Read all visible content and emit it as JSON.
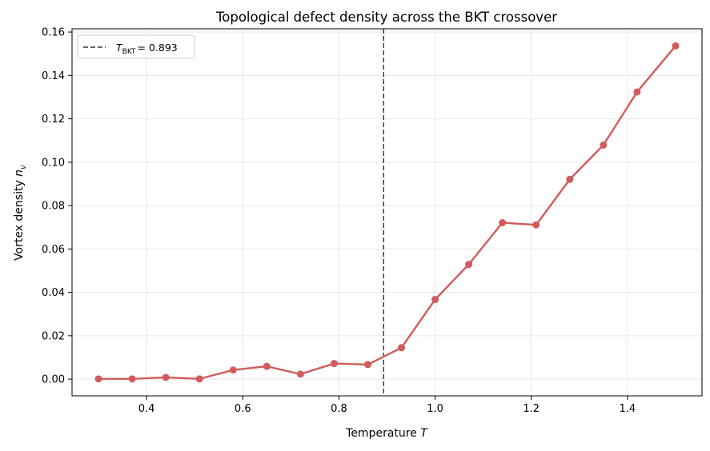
{
  "chart_data": {
    "type": "line",
    "title": "Topological defect density across the BKT crossover",
    "xlabel": "Temperature",
    "xlabel_var": "T",
    "ylabel": "Vortex density",
    "ylabel_var": "n",
    "ylabel_sub": "v",
    "xlim": [
      0.245,
      1.555
    ],
    "ylim": [
      -0.0077,
      0.1615
    ],
    "xticks": [
      0.4,
      0.6,
      0.8,
      1.0,
      1.2,
      1.4
    ],
    "xtick_labels": [
      "0.4",
      "0.6",
      "0.8",
      "1.0",
      "1.2",
      "1.4"
    ],
    "yticks": [
      0.0,
      0.02,
      0.04,
      0.06,
      0.08,
      0.1,
      0.12,
      0.14,
      0.16
    ],
    "ytick_labels": [
      "0.00",
      "0.02",
      "0.04",
      "0.06",
      "0.08",
      "0.10",
      "0.12",
      "0.14",
      "0.16"
    ],
    "grid": true,
    "series": [
      {
        "color": "#d25c5c",
        "x": [
          0.3,
          0.37,
          0.44,
          0.51,
          0.58,
          0.65,
          0.72,
          0.79,
          0.86,
          0.93,
          1.0,
          1.07,
          1.14,
          1.21,
          1.28,
          1.35,
          1.42,
          1.5
        ],
        "y": [
          0.0001,
          0.0001,
          0.0008,
          0.0001,
          0.0042,
          0.0059,
          0.0023,
          0.0072,
          0.0067,
          0.0145,
          0.0367,
          0.0529,
          0.0721,
          0.0711,
          0.0921,
          0.1079,
          0.1324,
          0.1536
        ]
      }
    ],
    "vline": {
      "x": 0.893,
      "color": "#333333",
      "style": "dashed",
      "legend_sym": "T",
      "legend_sub": "BKT",
      "legend_value": "= 0.893"
    },
    "legend": {
      "position": "top-left"
    }
  }
}
